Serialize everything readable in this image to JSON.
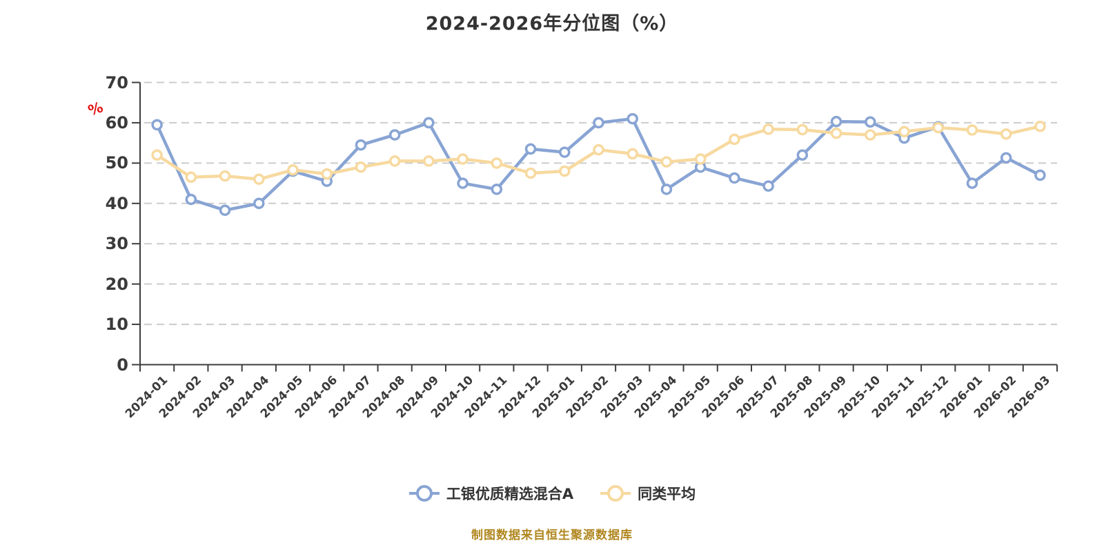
{
  "title": "2024-2026年分位图（%）",
  "source_note": "制图数据来自恒生聚源数据库",
  "colors": {
    "series1": "#88a4d4",
    "series2": "#f7d99f",
    "grid": "#cccccc",
    "axis": "#3d3d3d",
    "text": "#333333",
    "unit_label": "#e11414",
    "source_note": "#b0871f"
  },
  "y_axis": {
    "unit": "%",
    "min": 0,
    "max": 70,
    "tick_labels": [
      "0",
      "10",
      "20",
      "30",
      "40",
      "50",
      "60",
      "70"
    ]
  },
  "legend": {
    "items": [
      {
        "label": "工银优质精选混合A",
        "color": "#88a4d4"
      },
      {
        "label": "同类平均",
        "color": "#f7d99f"
      }
    ]
  },
  "chart_data": {
    "type": "line",
    "title": "2024-2026年分位图（%）",
    "x": [
      "2024-01",
      "2024-02",
      "2024-03",
      "2024-04",
      "2024-05",
      "2024-06",
      "2024-07",
      "2024-08",
      "2024-09",
      "2024-10",
      "2024-11",
      "2024-12",
      "2025-01",
      "2025-02",
      "2025-03",
      "2025-04",
      "2025-05",
      "2025-06",
      "2025-07",
      "2025-08",
      "2025-09",
      "2025-10",
      "2025-11",
      "2025-12",
      "2026-01",
      "2026-02",
      "2026-03"
    ],
    "series": [
      {
        "name": "工银优质精选混合A",
        "color": "#88a4d4",
        "values": [
          59.5,
          41,
          38.3,
          40,
          48,
          45.5,
          54.5,
          57,
          60,
          45,
          43.5,
          53.5,
          52.7,
          60,
          61,
          43.5,
          49,
          46.3,
          44.3,
          52,
          60.3,
          60.2,
          56.2,
          59,
          45,
          51.3,
          47
        ]
      },
      {
        "name": "同类平均",
        "color": "#f7d99f",
        "values": [
          52,
          46.5,
          46.8,
          46,
          48.3,
          47.3,
          49,
          50.5,
          50.5,
          51,
          50,
          47.5,
          48,
          53.3,
          52.3,
          50.3,
          51,
          55.9,
          58.4,
          58.3,
          57.4,
          57,
          57.8,
          58.8,
          58.2,
          57.2,
          59.1
        ]
      }
    ],
    "ylim": [
      0,
      70
    ],
    "y_ticks": [
      0,
      10,
      20,
      30,
      40,
      50,
      60,
      70
    ],
    "grid": "horizontal dashed",
    "legend_position": "bottom",
    "ylabel": "%"
  }
}
